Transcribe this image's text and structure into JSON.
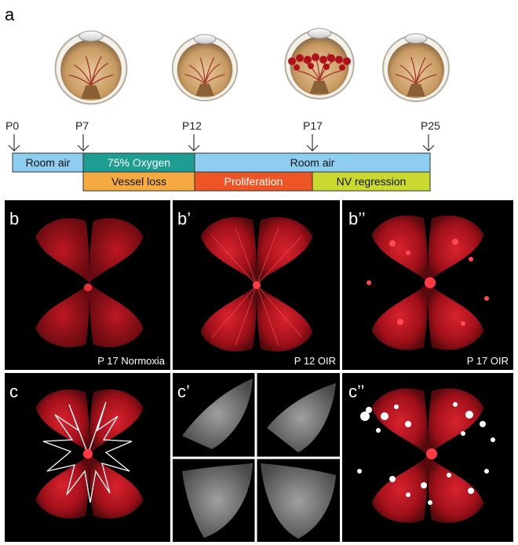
{
  "panel_labels": {
    "a": "a",
    "b": "b",
    "b1": "b’",
    "b2": "b’’",
    "c": "c",
    "c1": "c’",
    "c2": "c’’"
  },
  "timeline": {
    "days": [
      "P0",
      "P7",
      "P12",
      "P17",
      "P25"
    ],
    "oxygen_row": {
      "room_air_1": "Room air",
      "oxygen": "75% Oxygen",
      "room_air_2": "Room air"
    },
    "phase_row": {
      "vessel_loss": "Vessel loss",
      "proliferation": "Proliferation",
      "nv_regression": "NV regression"
    }
  },
  "captions": {
    "b": "P 17 Normoxia",
    "b1": "P 12 OIR",
    "b2": "P 17 OIR"
  },
  "colors": {
    "room_air": "#8ccdf0",
    "oxygen": "#1e9e93",
    "vessel_loss": "#f5a941",
    "proliferation": "#ee5526",
    "nv_regression": "#c9d931",
    "retina_red": "#c8141e",
    "panel_bg": "#000000"
  },
  "icons": [
    "eyeball-icon",
    "down-arrow-icon"
  ]
}
